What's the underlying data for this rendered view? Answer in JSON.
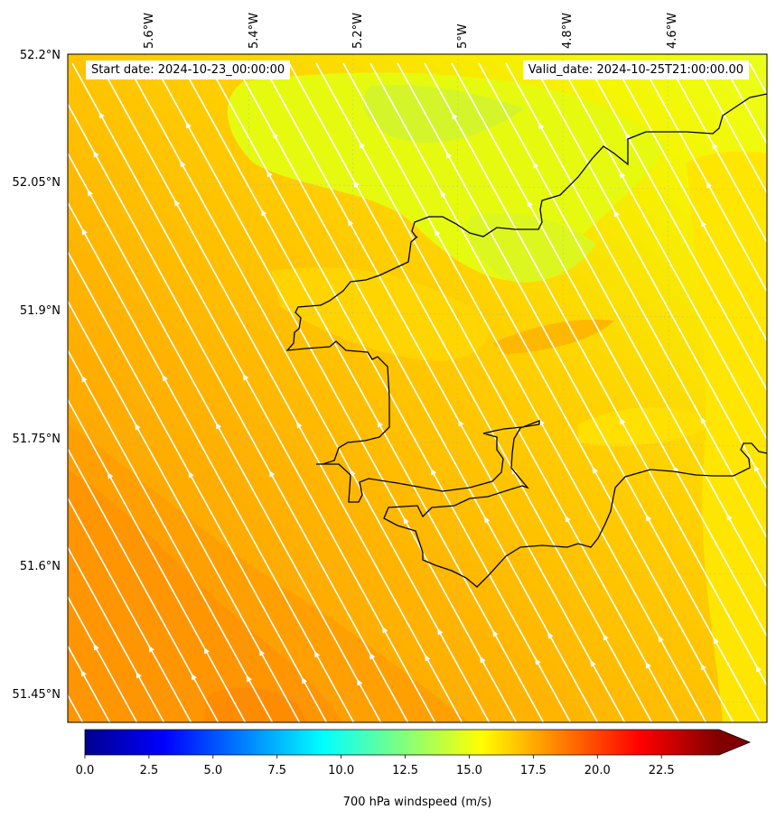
{
  "map": {
    "start_date": "Start date: 2024-10-23_00:00:00",
    "valid_date": "Valid_date: 2024-10-25T21:00:00.00",
    "lon_labels": [
      "5.6°W",
      "5.4°W",
      "5.2°W",
      "5°W",
      "4.8°W",
      "4.6°W"
    ],
    "lat_labels": [
      "52.2°N",
      "52.05°N",
      "51.9°N",
      "51.75°N",
      "51.6°N",
      "51.45°N"
    ],
    "field": "700 hPa windspeed",
    "colors": {
      "coastline": "#000000",
      "streamlines": "#ffffff",
      "field_low": "#ff9500",
      "field_mid": "#ffc400",
      "field_high": "#eaff1a"
    }
  },
  "colorbar": {
    "label": "700 hPa windspeed (m/s)",
    "ticks": [
      "0.0",
      "2.5",
      "5.0",
      "7.5",
      "10.0",
      "12.5",
      "15.0",
      "17.5",
      "20.0",
      "22.5"
    ],
    "tick_values": [
      0,
      2.5,
      5,
      7.5,
      10,
      12.5,
      15,
      17.5,
      20,
      22.5
    ],
    "range": [
      0,
      24.75
    ],
    "extend": "max",
    "colormap": "jet"
  }
}
